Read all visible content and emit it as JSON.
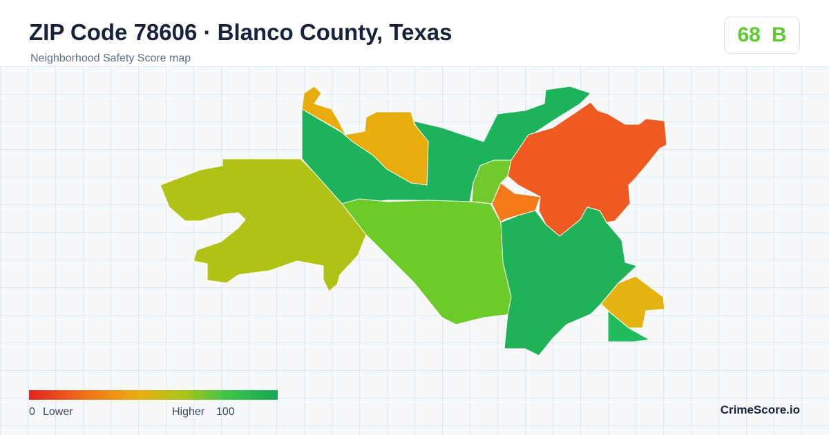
{
  "header": {
    "title": "ZIP Code 78606 · Blanco County, Texas",
    "subtitle": "Neighborhood Safety Score map"
  },
  "score": {
    "value": 68,
    "grade": "B"
  },
  "legend": {
    "min": 0,
    "low_label": "Lower",
    "high_label": "Higher",
    "max": 100
  },
  "brand": "CrimeScore.io"
}
